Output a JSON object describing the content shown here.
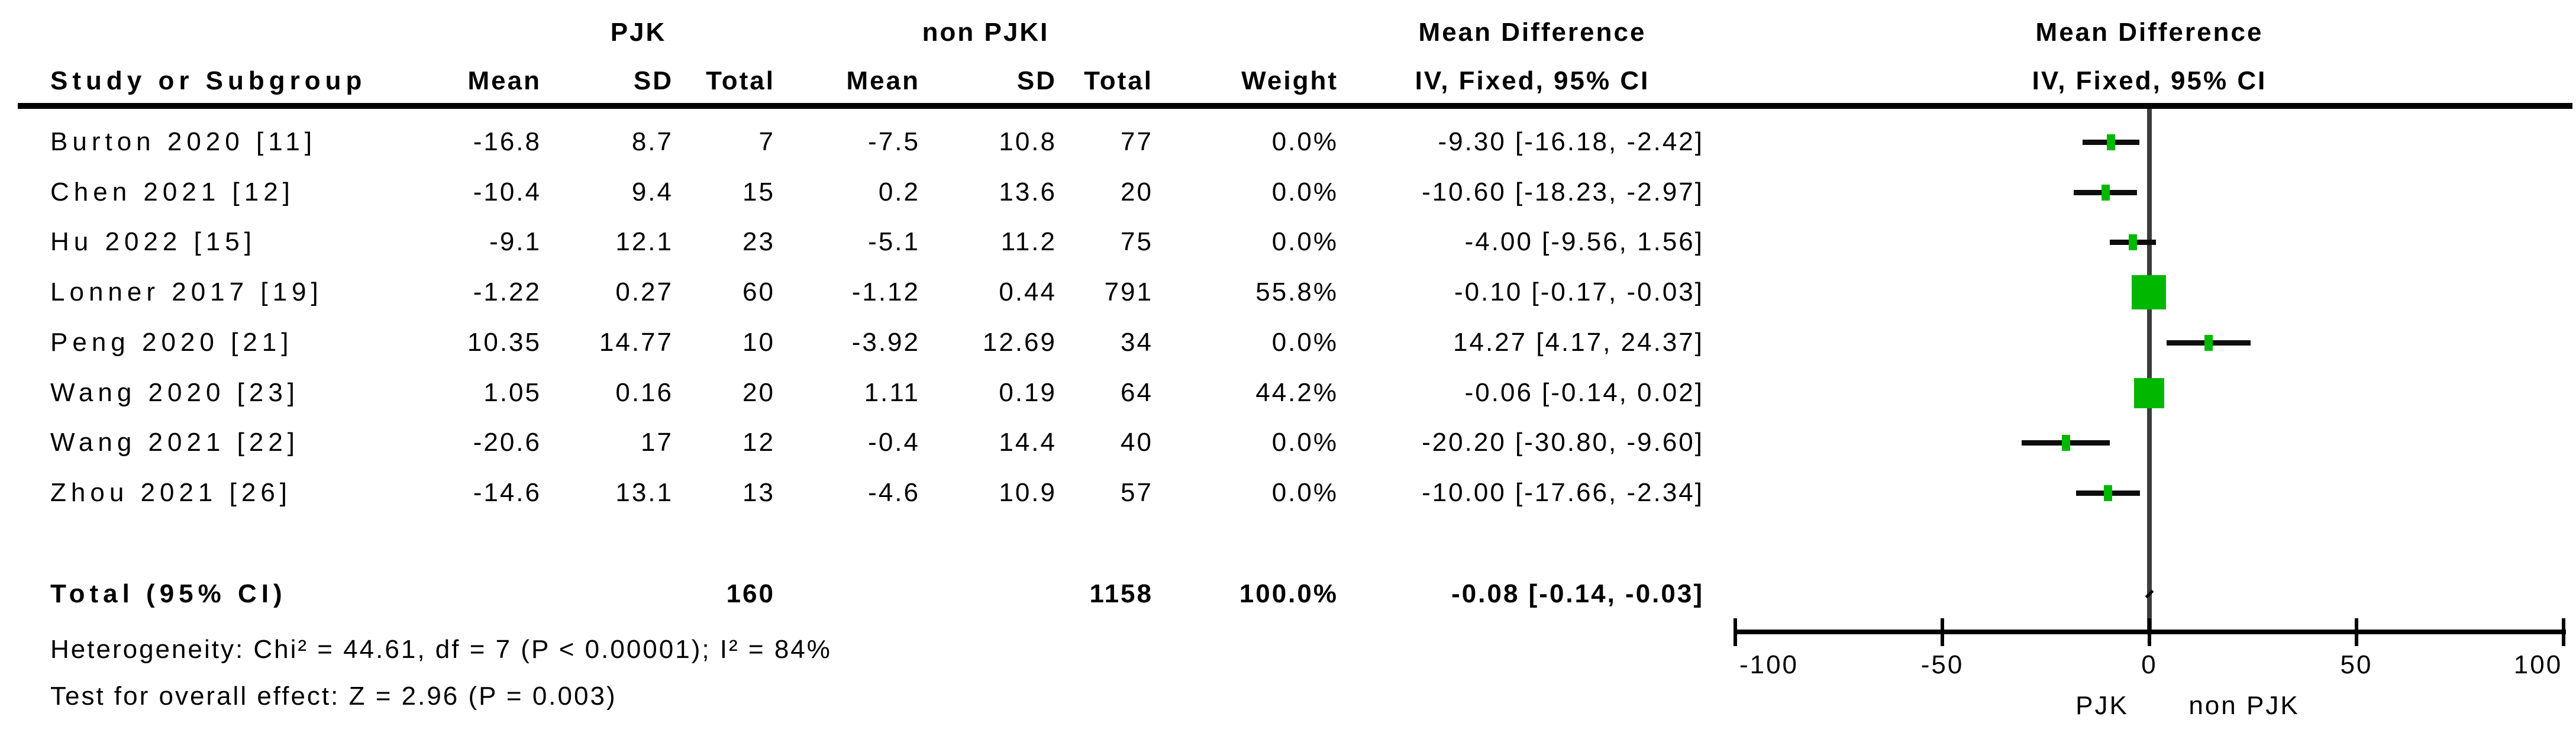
{
  "header": {
    "group1": "PJK",
    "group2": "non PJKI",
    "study_col": "Study or Subgroup",
    "cols": [
      "Mean",
      "SD",
      "Total",
      "Mean",
      "SD",
      "Total",
      "Weight"
    ],
    "effect_title": "Mean Difference",
    "effect_subtitle": "IV, Fixed, 95% CI",
    "plot_title": "Mean Difference",
    "plot_subtitle": "IV, Fixed, 95% CI"
  },
  "studies": [
    {
      "name": "Burton 2020 [11]",
      "mean1": "-16.8",
      "sd1": "8.7",
      "total1": "7",
      "mean2": "-7.5",
      "sd2": "10.8",
      "total2": "77",
      "weight": "0.0%",
      "ci_text": "-9.30 [-16.18, -2.42]",
      "est": -9.3,
      "lo": -16.18,
      "hi": -2.42,
      "weight_val": 0.0
    },
    {
      "name": "Chen 2021 [12]",
      "mean1": "-10.4",
      "sd1": "9.4",
      "total1": "15",
      "mean2": "0.2",
      "sd2": "13.6",
      "total2": "20",
      "weight": "0.0%",
      "ci_text": "-10.60 [-18.23, -2.97]",
      "est": -10.6,
      "lo": -18.23,
      "hi": -2.97,
      "weight_val": 0.0
    },
    {
      "name": "Hu 2022 [15]",
      "mean1": "-9.1",
      "sd1": "12.1",
      "total1": "23",
      "mean2": "-5.1",
      "sd2": "11.2",
      "total2": "75",
      "weight": "0.0%",
      "ci_text": "-4.00 [-9.56, 1.56]",
      "est": -4.0,
      "lo": -9.56,
      "hi": 1.56,
      "weight_val": 0.0
    },
    {
      "name": "Lonner 2017 [19]",
      "mean1": "-1.22",
      "sd1": "0.27",
      "total1": "60",
      "mean2": "-1.12",
      "sd2": "0.44",
      "total2": "791",
      "weight": "55.8%",
      "ci_text": "-0.10 [-0.17, -0.03]",
      "est": -0.1,
      "lo": -0.17,
      "hi": -0.03,
      "weight_val": 55.8
    },
    {
      "name": "Peng 2020 [21]",
      "mean1": "10.35",
      "sd1": "14.77",
      "total1": "10",
      "mean2": "-3.92",
      "sd2": "12.69",
      "total2": "34",
      "weight": "0.0%",
      "ci_text": "14.27 [4.17, 24.37]",
      "est": 14.27,
      "lo": 4.17,
      "hi": 24.37,
      "weight_val": 0.0
    },
    {
      "name": "Wang 2020 [23]",
      "mean1": "1.05",
      "sd1": "0.16",
      "total1": "20",
      "mean2": "1.11",
      "sd2": "0.19",
      "total2": "64",
      "weight": "44.2%",
      "ci_text": "-0.06 [-0.14, 0.02]",
      "est": -0.06,
      "lo": -0.14,
      "hi": 0.02,
      "weight_val": 44.2
    },
    {
      "name": "Wang 2021 [22]",
      "mean1": "-20.6",
      "sd1": "17",
      "total1": "12",
      "mean2": "-0.4",
      "sd2": "14.4",
      "total2": "40",
      "weight": "0.0%",
      "ci_text": "-20.20 [-30.80, -9.60]",
      "est": -20.2,
      "lo": -30.8,
      "hi": -9.6,
      "weight_val": 0.0
    },
    {
      "name": "Zhou 2021 [26]",
      "mean1": "-14.6",
      "sd1": "13.1",
      "total1": "13",
      "mean2": "-4.6",
      "sd2": "10.9",
      "total2": "57",
      "weight": "0.0%",
      "ci_text": "-10.00 [-17.66, -2.34]",
      "est": -10.0,
      "lo": -17.66,
      "hi": -2.34,
      "weight_val": 0.0
    }
  ],
  "total": {
    "label": "Total (95% CI)",
    "total1": "160",
    "total2": "1158",
    "weight": "100.0%",
    "ci_text": "-0.08 [-0.14, -0.03]",
    "est": -0.08,
    "lo": -0.14,
    "hi": -0.03
  },
  "footer": {
    "heterogeneity": "Heterogeneity: Chi² = 44.61, df = 7 (P < 0.00001); I² = 84%",
    "overall_effect": "Test for overall effect: Z = 2.96 (P = 0.003)"
  },
  "axis": {
    "ticks": [
      "-100",
      "-50",
      "0",
      "50",
      "100"
    ],
    "tick_values": [
      -100,
      -50,
      0,
      50,
      100
    ],
    "label_left": "PJK",
    "label_right": "non PJK"
  },
  "colors": {
    "marker_green": "#00b800",
    "zero_line": "#3d3d3d",
    "ci_line": "#0d0d0d",
    "text": "#000000"
  },
  "chart_data": {
    "type": "forest",
    "title": "Mean Difference, IV, Fixed, 95% CI — PJK vs non PJK",
    "x_axis": {
      "label_left": "PJK",
      "label_right": "non PJK",
      "ticks": [
        -100,
        -50,
        0,
        50,
        100
      ],
      "range": [
        -100,
        100
      ]
    },
    "studies": [
      {
        "study": "Burton 2020 [11]",
        "pjk": {
          "mean": -16.8,
          "sd": 8.7,
          "total": 7
        },
        "non_pjk": {
          "mean": -7.5,
          "sd": 10.8,
          "total": 77
        },
        "weight_pct": 0.0,
        "md": -9.3,
        "ci": [
          -16.18,
          -2.42
        ]
      },
      {
        "study": "Chen 2021 [12]",
        "pjk": {
          "mean": -10.4,
          "sd": 9.4,
          "total": 15
        },
        "non_pjk": {
          "mean": 0.2,
          "sd": 13.6,
          "total": 20
        },
        "weight_pct": 0.0,
        "md": -10.6,
        "ci": [
          -18.23,
          -2.97
        ]
      },
      {
        "study": "Hu 2022 [15]",
        "pjk": {
          "mean": -9.1,
          "sd": 12.1,
          "total": 23
        },
        "non_pjk": {
          "mean": -5.1,
          "sd": 11.2,
          "total": 75
        },
        "weight_pct": 0.0,
        "md": -4.0,
        "ci": [
          -9.56,
          1.56
        ]
      },
      {
        "study": "Lonner 2017 [19]",
        "pjk": {
          "mean": -1.22,
          "sd": 0.27,
          "total": 60
        },
        "non_pjk": {
          "mean": -1.12,
          "sd": 0.44,
          "total": 791
        },
        "weight_pct": 55.8,
        "md": -0.1,
        "ci": [
          -0.17,
          -0.03
        ]
      },
      {
        "study": "Peng 2020 [21]",
        "pjk": {
          "mean": 10.35,
          "sd": 14.77,
          "total": 10
        },
        "non_pjk": {
          "mean": -3.92,
          "sd": 12.69,
          "total": 34
        },
        "weight_pct": 0.0,
        "md": 14.27,
        "ci": [
          4.17,
          24.37
        ]
      },
      {
        "study": "Wang 2020 [23]",
        "pjk": {
          "mean": 1.05,
          "sd": 0.16,
          "total": 20
        },
        "non_pjk": {
          "mean": 1.11,
          "sd": 0.19,
          "total": 64
        },
        "weight_pct": 44.2,
        "md": -0.06,
        "ci": [
          -0.14,
          0.02
        ]
      },
      {
        "study": "Wang 2021 [22]",
        "pjk": {
          "mean": -20.6,
          "sd": 17,
          "total": 12
        },
        "non_pjk": {
          "mean": -0.4,
          "sd": 14.4,
          "total": 40
        },
        "weight_pct": 0.0,
        "md": -20.2,
        "ci": [
          -30.8,
          -9.6
        ]
      },
      {
        "study": "Zhou 2021 [26]",
        "pjk": {
          "mean": -14.6,
          "sd": 13.1,
          "total": 13
        },
        "non_pjk": {
          "mean": -4.6,
          "sd": 10.9,
          "total": 57
        },
        "weight_pct": 0.0,
        "md": -10.0,
        "ci": [
          -17.66,
          -2.34
        ]
      }
    ],
    "total": {
      "study": "Total (95% CI)",
      "pjk_total": 160,
      "non_pjk_total": 1158,
      "weight_pct": 100.0,
      "md": -0.08,
      "ci": [
        -0.14,
        -0.03
      ]
    },
    "heterogeneity": {
      "chi2": 44.61,
      "df": 7,
      "p": "< 0.00001",
      "i2_pct": 84
    },
    "overall_effect": {
      "z": 2.96,
      "p": 0.003
    }
  }
}
